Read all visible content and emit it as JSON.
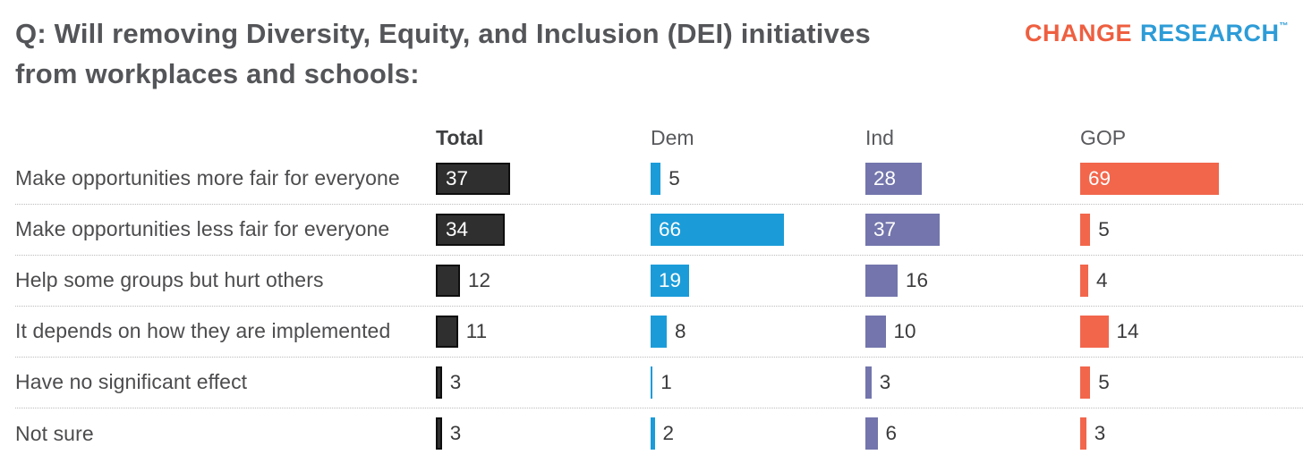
{
  "header": {
    "title_line1": "Q: Will removing Diversity, Equity, and Inclusion (DEI) initiatives",
    "title_line2": "from workplaces and schools:",
    "logo": {
      "word1": "CHANGE",
      "word2": "RESEARCH",
      "trademark": "™",
      "word1_color": "#ee5f40",
      "word2_color": "#2d9cd7"
    }
  },
  "chart_data": {
    "type": "bar",
    "orientation": "horizontal",
    "value_unit": "percent",
    "xlim": [
      0,
      100
    ],
    "grid": false,
    "legend_position": "column-headers",
    "label_inside_threshold": 18,
    "columns": [
      "Total",
      "Dem",
      "Ind",
      "GOP"
    ],
    "categories": [
      "Make opportunities more fair for everyone",
      "Make opportunities less fair for everyone",
      "Help some groups but hurt others",
      "It depends on how they are implemented",
      "Have no significant effect",
      "Not sure"
    ],
    "series": [
      {
        "name": "Total",
        "color": "#2f2f30",
        "border_color": "#0e0e0e",
        "values": [
          37,
          34,
          12,
          11,
          3,
          3
        ]
      },
      {
        "name": "Dem",
        "color": "#1b9cd9",
        "values": [
          5,
          66,
          19,
          8,
          1,
          2
        ]
      },
      {
        "name": "Ind",
        "color": "#7375ac",
        "values": [
          28,
          37,
          16,
          10,
          3,
          6
        ]
      },
      {
        "name": "GOP",
        "color": "#f2664c",
        "values": [
          69,
          5,
          4,
          14,
          5,
          3
        ]
      }
    ]
  }
}
